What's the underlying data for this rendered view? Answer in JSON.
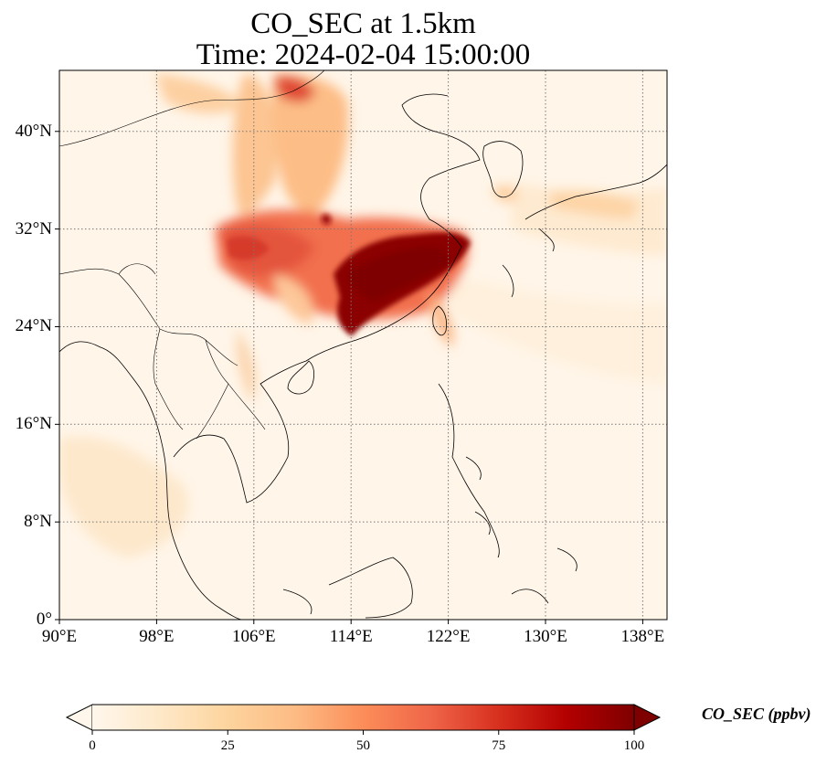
{
  "title": {
    "line1": "CO_SEC at 1.5km",
    "line2": "Time: 2024-02-04 15:00:00"
  },
  "map": {
    "variable": "CO_SEC",
    "level": "1.5km",
    "lon_range": [
      90,
      140
    ],
    "lat_range": [
      0,
      45
    ],
    "gridlines": "dotted",
    "colormap": "OrRd",
    "x_ticks": [
      {
        "value": 90,
        "label": "90°E"
      },
      {
        "value": 98,
        "label": "98°E"
      },
      {
        "value": 106,
        "label": "106°E"
      },
      {
        "value": 114,
        "label": "114°E"
      },
      {
        "value": 122,
        "label": "122°E"
      },
      {
        "value": 130,
        "label": "130°E"
      },
      {
        "value": 138,
        "label": "138°E"
      }
    ],
    "y_ticks": [
      {
        "value": 0,
        "label": "0°"
      },
      {
        "value": 8,
        "label": "8°N"
      },
      {
        "value": 16,
        "label": "16°N"
      },
      {
        "value": 24,
        "label": "24°N"
      },
      {
        "value": 32,
        "label": "32°N"
      },
      {
        "value": 40,
        "label": "40°N"
      }
    ]
  },
  "colorbar": {
    "title": "CO_SEC (ppbv)",
    "min": 0,
    "max": 100,
    "extend": "both",
    "ticks": [
      {
        "value": 0,
        "label": "0"
      },
      {
        "value": 25,
        "label": "25"
      },
      {
        "value": 50,
        "label": "50"
      },
      {
        "value": 75,
        "label": "75"
      },
      {
        "value": 100,
        "label": "100"
      }
    ],
    "colors": [
      "#fff7ec",
      "#fee8c8",
      "#fdd49e",
      "#fdbb84",
      "#fc8d59",
      "#ef6548",
      "#d7301f",
      "#b30000",
      "#7f0000"
    ]
  }
}
